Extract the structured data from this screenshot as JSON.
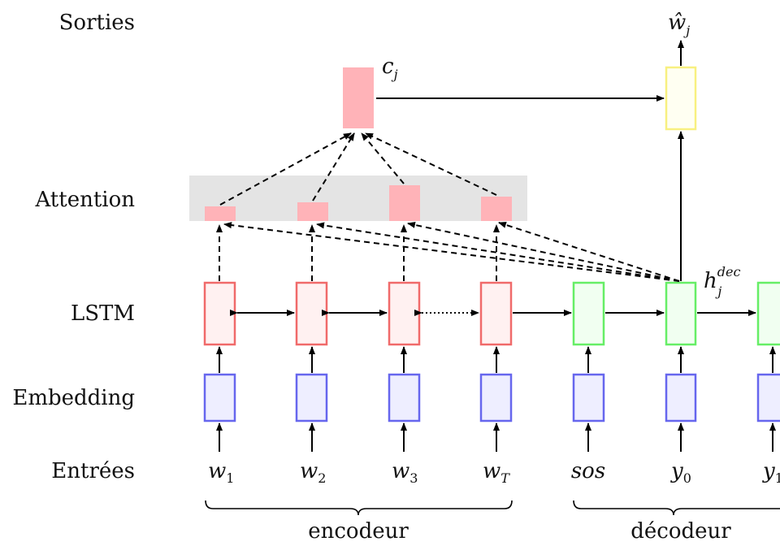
{
  "row_labels": {
    "outputs": "Sorties",
    "attention": "Attention",
    "lstm": "LSTM",
    "embedding": "Embedding",
    "inputs": "Entrées"
  },
  "inputs": {
    "w1": {
      "base": "w",
      "sub": "1"
    },
    "w2": {
      "base": "w",
      "sub": "2"
    },
    "w3": {
      "base": "w",
      "sub": "3"
    },
    "wT": {
      "base": "w",
      "sub": "T"
    },
    "sos": {
      "base": "sos"
    },
    "y0": {
      "base": "y",
      "sub": "0"
    },
    "y1": {
      "base": "y",
      "sub": "1"
    }
  },
  "context": {
    "base": "c",
    "sub": "j"
  },
  "decoder_state": {
    "base": "h",
    "sub": "j",
    "sup": "dec"
  },
  "output": {
    "base": "ŵ",
    "sub": "j"
  },
  "groups": {
    "encoder": "encodeur",
    "decoder": "décodeur"
  },
  "colors": {
    "encoder_lstm_stroke": "#f06a6a",
    "encoder_lstm_fill": "#fff1f1",
    "decoder_lstm_stroke": "#66ee66",
    "decoder_lstm_fill": "#f1fff1",
    "embedding_stroke": "#6666ee",
    "embedding_fill": "#eeeeff",
    "attention_fill": "#ffb3b8",
    "attention_band": "#e4e4e4",
    "output_stroke": "#f8f080",
    "output_fill": "#fffff2"
  }
}
